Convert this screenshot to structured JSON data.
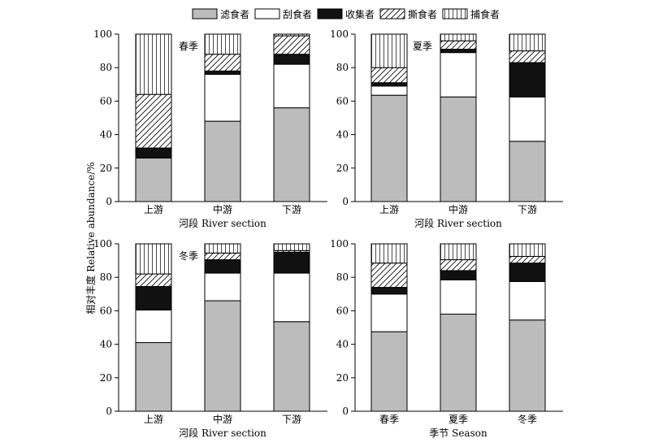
{
  "legend": {
    "items": [
      {
        "key": "filter",
        "label": "滤食者",
        "fill": "gray"
      },
      {
        "key": "scraper",
        "label": "刮食者",
        "fill": "white"
      },
      {
        "key": "collector",
        "label": "收集者",
        "fill": "black"
      },
      {
        "key": "shredder",
        "label": "撕食者",
        "fill": "diagonal"
      },
      {
        "key": "predator",
        "label": "捕食者",
        "fill": "vertical"
      }
    ]
  },
  "ylabel": "相对丰度 Relative abundance/%",
  "colors": {
    "gray": "#bcbcbc",
    "black": "#111111",
    "stroke": "#000000"
  },
  "chart_data": [
    {
      "type": "bar",
      "stacked": true,
      "panel": "top-left",
      "annotation": "春季",
      "xlabel": "河段 River section",
      "categories": [
        "上游",
        "中游",
        "下游"
      ],
      "ylim": [
        0,
        100
      ],
      "yticks": [
        0,
        20,
        40,
        60,
        80,
        100
      ],
      "series": [
        {
          "name": "滤食者",
          "values": [
            26,
            48,
            56
          ]
        },
        {
          "name": "刮食者",
          "values": [
            0,
            28,
            26
          ]
        },
        {
          "name": "收集者",
          "values": [
            6,
            2,
            6
          ]
        },
        {
          "name": "撕食者",
          "values": [
            32,
            10,
            11
          ]
        },
        {
          "name": "捕食者",
          "values": [
            36,
            12,
            1
          ]
        }
      ]
    },
    {
      "type": "bar",
      "stacked": true,
      "panel": "top-right",
      "annotation": "夏季",
      "xlabel": "河段 River section",
      "categories": [
        "上游",
        "中游",
        "下游"
      ],
      "ylim": [
        0,
        100
      ],
      "yticks": [
        0,
        20,
        40,
        60,
        80,
        100
      ],
      "series": [
        {
          "name": "滤食者",
          "values": [
            63.5,
            62.5,
            36
          ]
        },
        {
          "name": "刮食者",
          "values": [
            5.5,
            26.5,
            26.5
          ]
        },
        {
          "name": "收集者",
          "values": [
            2,
            2,
            20.5
          ]
        },
        {
          "name": "撕食者",
          "values": [
            9,
            5,
            7
          ]
        },
        {
          "name": "捕食者",
          "values": [
            20,
            4,
            10
          ]
        }
      ]
    },
    {
      "type": "bar",
      "stacked": true,
      "panel": "bottom-left",
      "annotation": "冬季",
      "xlabel": "河段 River section",
      "categories": [
        "上游",
        "中游",
        "下游"
      ],
      "ylim": [
        0,
        100
      ],
      "yticks": [
        0,
        20,
        40,
        60,
        80,
        100
      ],
      "series": [
        {
          "name": "滤食者",
          "values": [
            41,
            66,
            53.5
          ]
        },
        {
          "name": "刮食者",
          "values": [
            19.5,
            16.5,
            29
          ]
        },
        {
          "name": "收集者",
          "values": [
            14,
            8,
            12.5
          ]
        },
        {
          "name": "撕食者",
          "values": [
            7.5,
            4,
            1
          ]
        },
        {
          "name": "捕食者",
          "values": [
            18,
            5.5,
            4
          ]
        }
      ]
    },
    {
      "type": "bar",
      "stacked": true,
      "panel": "bottom-right",
      "annotation": "",
      "xlabel": "季节 Season",
      "categories": [
        "春季",
        "夏季",
        "冬季"
      ],
      "ylim": [
        0,
        100
      ],
      "yticks": [
        0,
        20,
        40,
        60,
        80,
        100
      ],
      "series": [
        {
          "name": "滤食者",
          "values": [
            47.5,
            58,
            54.5
          ]
        },
        {
          "name": "刮食者",
          "values": [
            22.5,
            20.5,
            23
          ]
        },
        {
          "name": "收集者",
          "values": [
            4,
            5.5,
            11
          ]
        },
        {
          "name": "撕食者",
          "values": [
            14.5,
            6.5,
            4
          ]
        },
        {
          "name": "捕食者",
          "values": [
            11.5,
            9.5,
            7.5
          ]
        }
      ]
    }
  ]
}
